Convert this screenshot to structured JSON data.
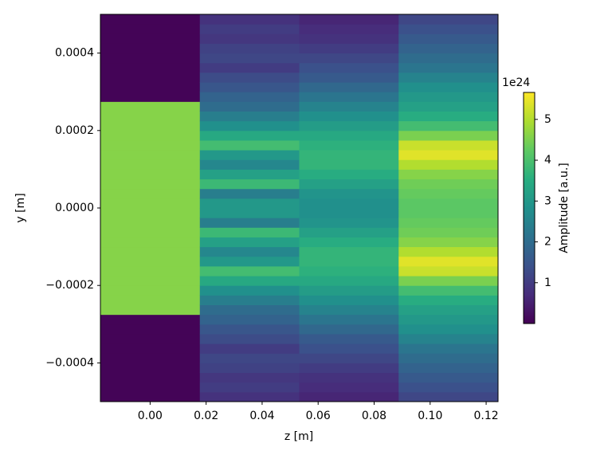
{
  "chart_data": {
    "type": "heatmap",
    "xlabel": "z [m]",
    "ylabel": "y [m]",
    "colorbar_label": "Amplitude [a.u.]",
    "colorbar_offset": "1e24",
    "colormap": "viridis",
    "x_bins": [
      -0.01775,
      0.01775,
      0.05325,
      0.08875,
      0.12425
    ],
    "y_bins": [
      -0.0005,
      -0.000475,
      -0.00045,
      -0.000425,
      -0.0004,
      -0.000375,
      -0.00035,
      -0.000325,
      -0.0003,
      -0.000275,
      -0.00025,
      -0.000225,
      -0.0002,
      -0.000175,
      -0.00015,
      -0.000125,
      -0.0001,
      -7.5e-05,
      -5e-05,
      -2.5e-05,
      0,
      2.5e-05,
      5e-05,
      7.5e-05,
      0.0001,
      0.000125,
      0.00015,
      0.000175,
      0.0002,
      0.000225,
      0.00025,
      0.000275,
      0.0003,
      0.000325,
      0.00035,
      0.000375,
      0.0004,
      0.000425,
      0.00045,
      0.000475,
      0.0005
    ],
    "values": [
      [
        0.05,
        0.05,
        0.05,
        0.05,
        0.05,
        0.05,
        0.05,
        0.05,
        0.05,
        4.6,
        4.6,
        4.6,
        4.6,
        4.6,
        4.6,
        4.6,
        4.6,
        4.6,
        4.6,
        4.6,
        4.6,
        4.6,
        4.6,
        4.6,
        4.6,
        4.6,
        4.6,
        4.6,
        4.6,
        4.6,
        4.6,
        0.05,
        0.05,
        0.05,
        0.05,
        0.05,
        0.05,
        0.05,
        0.05,
        0.05
      ],
      [
        0.8,
        1.0,
        0.9,
        1.1,
        1.2,
        1.0,
        1.3,
        1.5,
        1.8,
        2.0,
        2.4,
        2.8,
        3.4,
        3.9,
        3.0,
        2.6,
        3.2,
        3.8,
        2.4,
        3.0,
        3.0,
        2.4,
        3.8,
        3.2,
        2.6,
        3.0,
        3.9,
        3.4,
        2.8,
        2.4,
        2.0,
        1.8,
        1.5,
        1.3,
        1.0,
        1.2,
        1.1,
        0.9,
        1.0,
        0.8
      ],
      [
        0.6,
        0.7,
        0.8,
        1.0,
        1.2,
        1.4,
        1.6,
        1.9,
        2.2,
        2.5,
        2.8,
        3.1,
        3.4,
        3.6,
        3.7,
        3.7,
        3.5,
        3.2,
        2.9,
        2.8,
        2.8,
        2.9,
        3.2,
        3.5,
        3.7,
        3.7,
        3.6,
        3.4,
        3.1,
        2.8,
        2.5,
        2.2,
        1.9,
        1.6,
        1.4,
        1.2,
        1.0,
        0.8,
        0.7,
        0.6
      ],
      [
        1.2,
        1.4,
        1.6,
        1.8,
        2.0,
        2.2,
        2.5,
        2.8,
        3.0,
        3.2,
        3.5,
        3.9,
        4.5,
        5.2,
        5.4,
        5.0,
        4.6,
        4.4,
        4.3,
        4.2,
        4.2,
        4.3,
        4.4,
        4.6,
        5.0,
        5.4,
        5.2,
        4.5,
        3.9,
        3.5,
        3.2,
        3.0,
        2.8,
        2.5,
        2.2,
        2.0,
        1.8,
        1.6,
        1.4,
        1.2
      ]
    ],
    "xlim": [
      -0.01775,
      0.12425
    ],
    "ylim": [
      -0.0005,
      0.0005
    ],
    "clim": [
      0,
      5.66
    ],
    "xticks": [
      {
        "value": 0,
        "label": "0.00"
      },
      {
        "value": 0.02,
        "label": "0.02"
      },
      {
        "value": 0.04,
        "label": "0.04"
      },
      {
        "value": 0.06,
        "label": "0.06"
      },
      {
        "value": 0.08,
        "label": "0.08"
      },
      {
        "value": 0.1,
        "label": "0.10"
      },
      {
        "value": 0.12,
        "label": "0.12"
      }
    ],
    "yticks": [
      {
        "value": -0.0004,
        "label": "−0.0004"
      },
      {
        "value": -0.0002,
        "label": "−0.0002"
      },
      {
        "value": 0,
        "label": "0.0000"
      },
      {
        "value": 0.0002,
        "label": "0.0002"
      },
      {
        "value": 0.0004,
        "label": "0.0004"
      }
    ],
    "cticks": [
      1,
      2,
      3,
      4,
      5
    ]
  }
}
